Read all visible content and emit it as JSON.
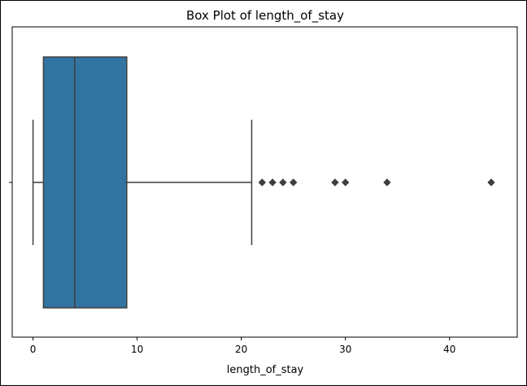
{
  "chart_data": {
    "type": "box",
    "title": "Box Plot of length_of_stay",
    "xlabel": "length_of_stay",
    "ylabel": "",
    "xlim": [
      -2,
      46.5
    ],
    "xticks": [
      0,
      10,
      20,
      30,
      40
    ],
    "tick_labels": [
      "0",
      "10",
      "20",
      "30",
      "40"
    ],
    "orientation": "horizontal",
    "grid": false,
    "box": {
      "whisker_low": 0,
      "q1": 1,
      "median": 4,
      "q3": 9,
      "whisker_high": 21
    },
    "outliers": [
      22,
      23,
      24,
      25,
      29,
      30,
      34,
      44
    ],
    "colors": {
      "box_fill": "#3274a1",
      "line": "#3f3f3f",
      "outlier": "#3f3f3f"
    }
  }
}
